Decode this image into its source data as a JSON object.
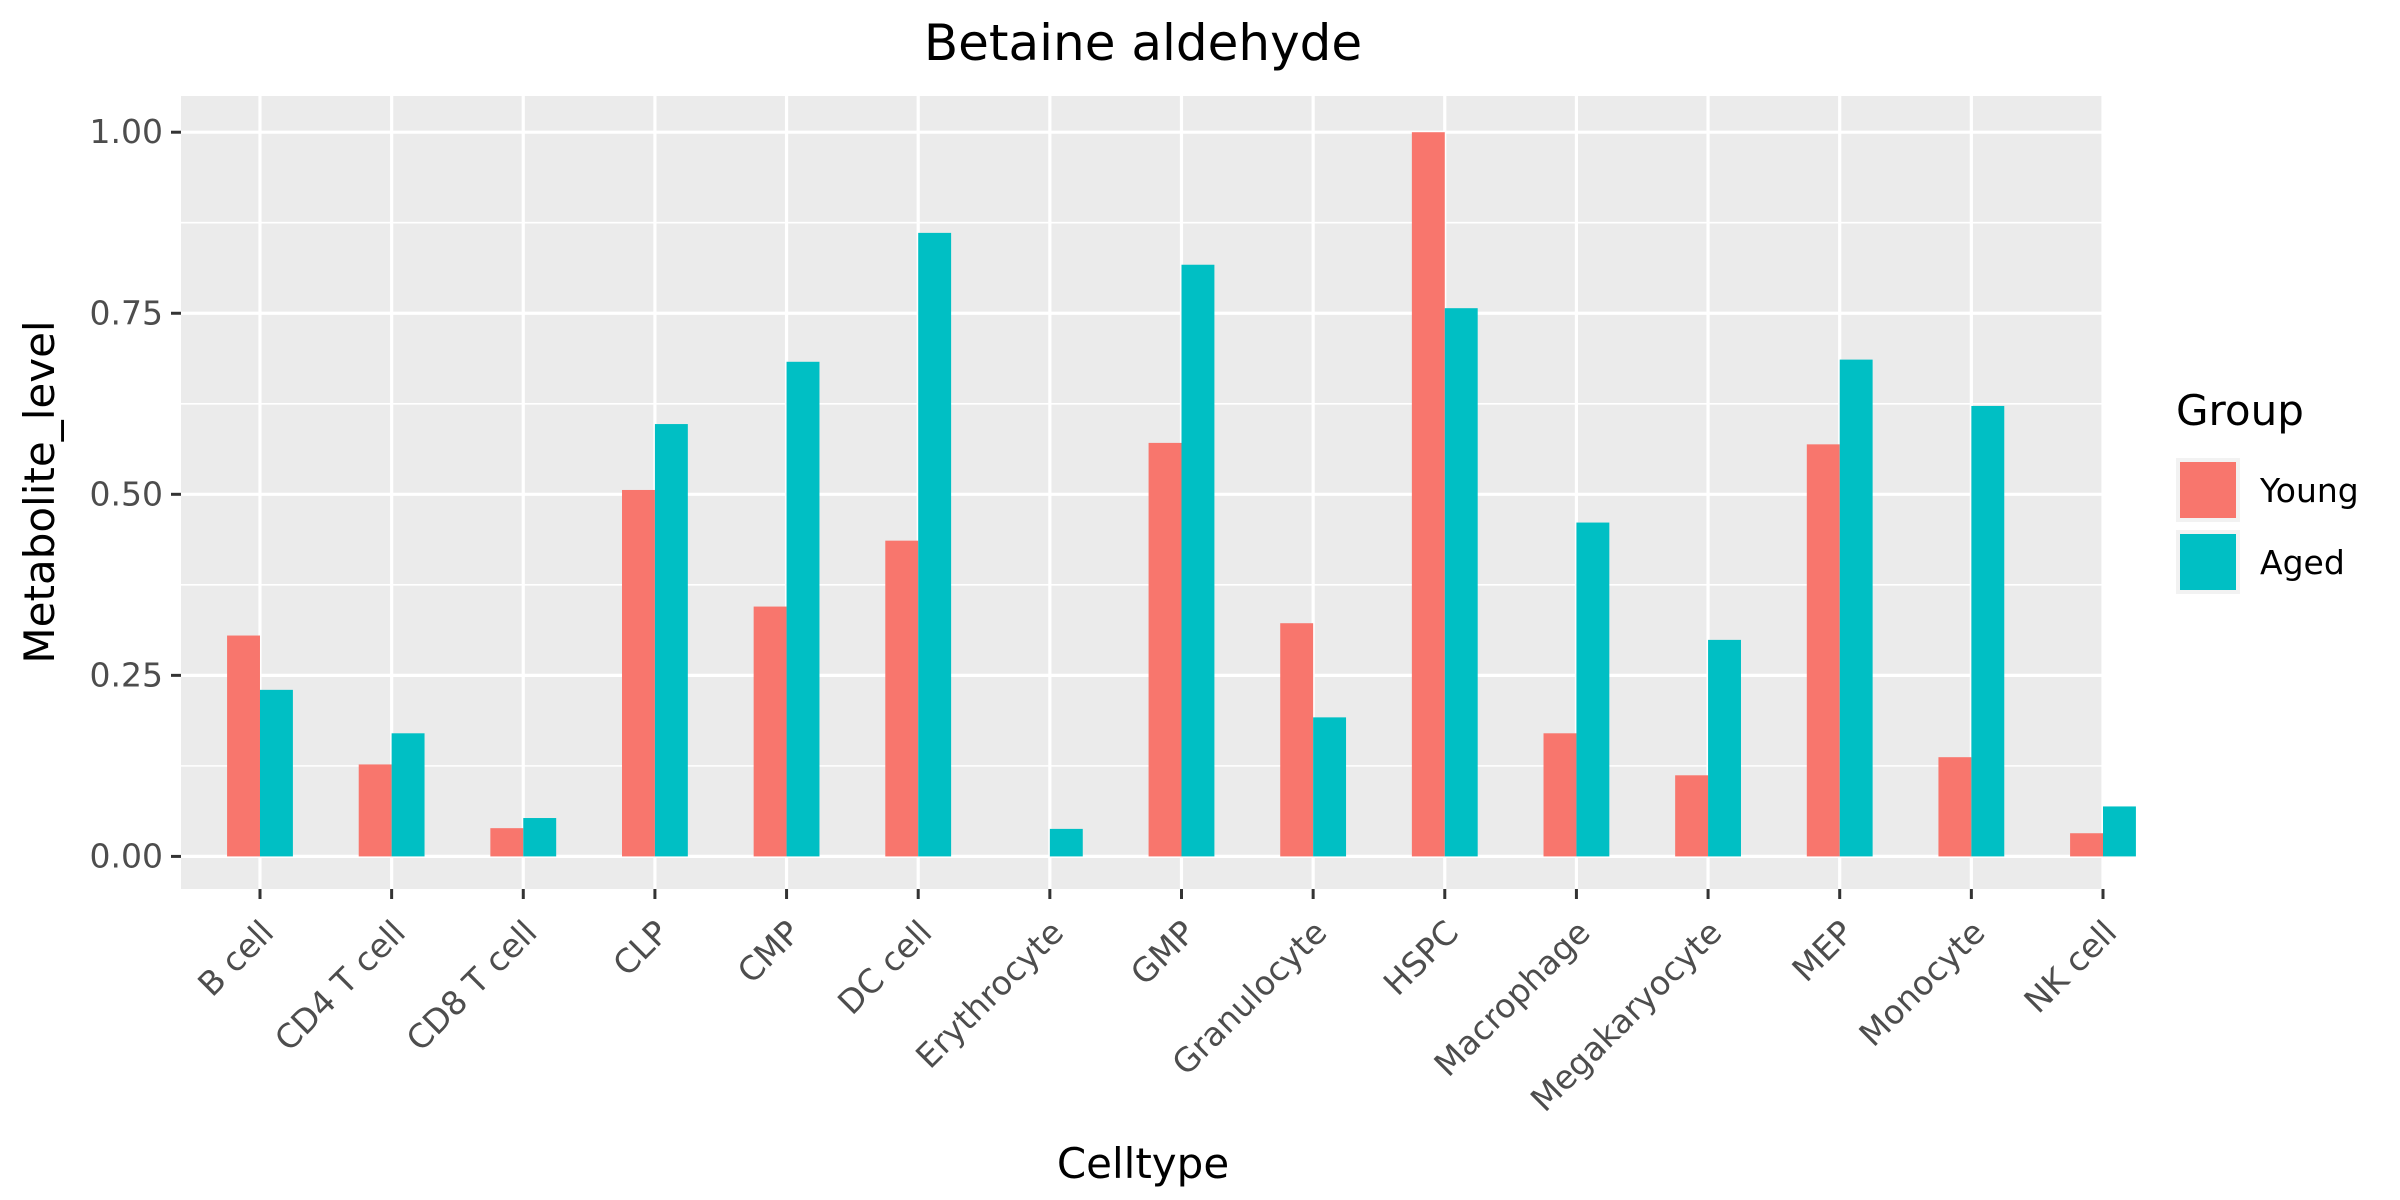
{
  "chart_data": {
    "type": "bar",
    "title": "Betaine aldehyde",
    "xlabel": "Celltype",
    "ylabel": "Metabolite_level",
    "ylim": [
      -0.045,
      1.05
    ],
    "yticks": [
      0,
      0.25,
      0.5,
      0.75,
      1.0
    ],
    "ytick_labels": [
      "0.00",
      "0.25",
      "0.50",
      "0.75",
      "1.00"
    ],
    "grid": true,
    "legend": {
      "title": "Group",
      "position": "right"
    },
    "categories": [
      "B cell",
      "CD4 T cell",
      "CD8 T cell",
      "CLP",
      "CMP",
      "DC cell",
      "Erythrocyte",
      "GMP",
      "Granulocyte",
      "HSPC",
      "Macrophage",
      "Megakaryocyte",
      "MEP",
      "Monocyte",
      "NK cell"
    ],
    "series": [
      {
        "name": "Young",
        "color": "#F8766D",
        "values": [
          0.305,
          0.127,
          0.039,
          0.506,
          0.345,
          0.436,
          0.0,
          0.571,
          0.322,
          1.0,
          0.17,
          0.112,
          0.569,
          0.137,
          0.032
        ]
      },
      {
        "name": "Aged",
        "color": "#00BFC4",
        "values": [
          0.23,
          0.17,
          0.053,
          0.597,
          0.683,
          0.861,
          0.038,
          0.817,
          0.192,
          0.757,
          0.461,
          0.299,
          0.686,
          0.622,
          0.069
        ]
      }
    ]
  }
}
